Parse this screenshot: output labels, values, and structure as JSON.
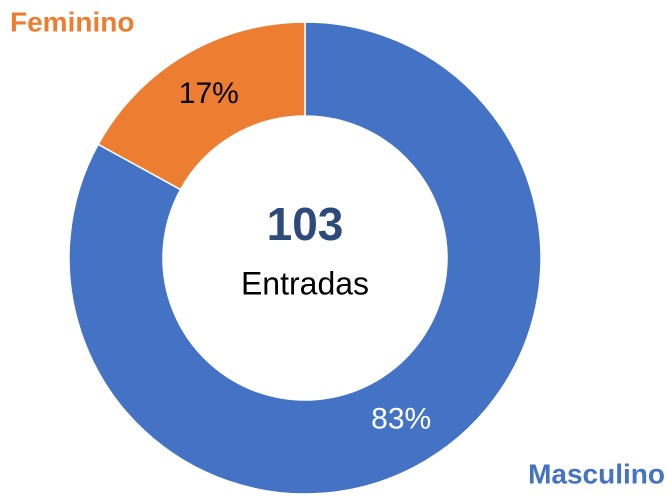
{
  "chart_data": {
    "type": "donut",
    "categories": [
      "Masculino",
      "Feminino"
    ],
    "values": [
      83,
      17
    ],
    "value_labels": [
      "83%",
      "17%"
    ],
    "colors": [
      "#4472c4",
      "#ed7d31"
    ],
    "center_value": 103,
    "center_label": "Entradas"
  }
}
